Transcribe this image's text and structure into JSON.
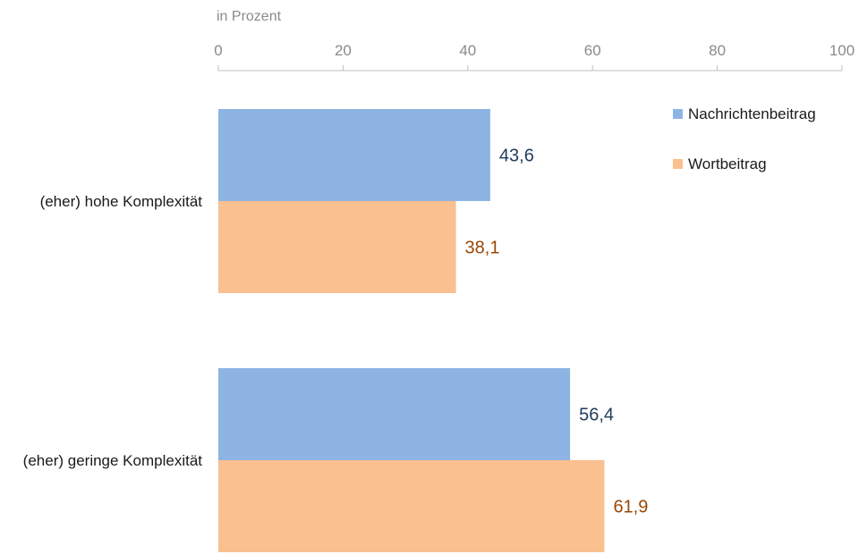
{
  "chart_data": {
    "type": "bar",
    "orientation": "horizontal",
    "unit_label": "in Prozent",
    "categories": [
      "(eher) hohe Komplexität",
      "(eher) geringe Komplexität"
    ],
    "series": [
      {
        "name": "Nachrichtenbeitrag",
        "values": [
          43.6,
          56.4
        ],
        "value_labels": [
          "43,6",
          "56,4"
        ],
        "color": "#8eb4e3",
        "label_color": "#1f3c5c"
      },
      {
        "name": "Wortbeitrag",
        "values": [
          38.1,
          61.9
        ],
        "value_labels": [
          "38,1",
          "61,9"
        ],
        "color": "#fac090",
        "label_color": "#984807"
      }
    ],
    "xlim": [
      0,
      100
    ],
    "xticks": [
      0,
      20,
      40,
      60,
      80,
      100
    ],
    "xtick_labels": [
      "0",
      "20",
      "40",
      "60",
      "80",
      "100"
    ],
    "axis_position": "top",
    "grid": false,
    "legend_position": "top-right"
  }
}
